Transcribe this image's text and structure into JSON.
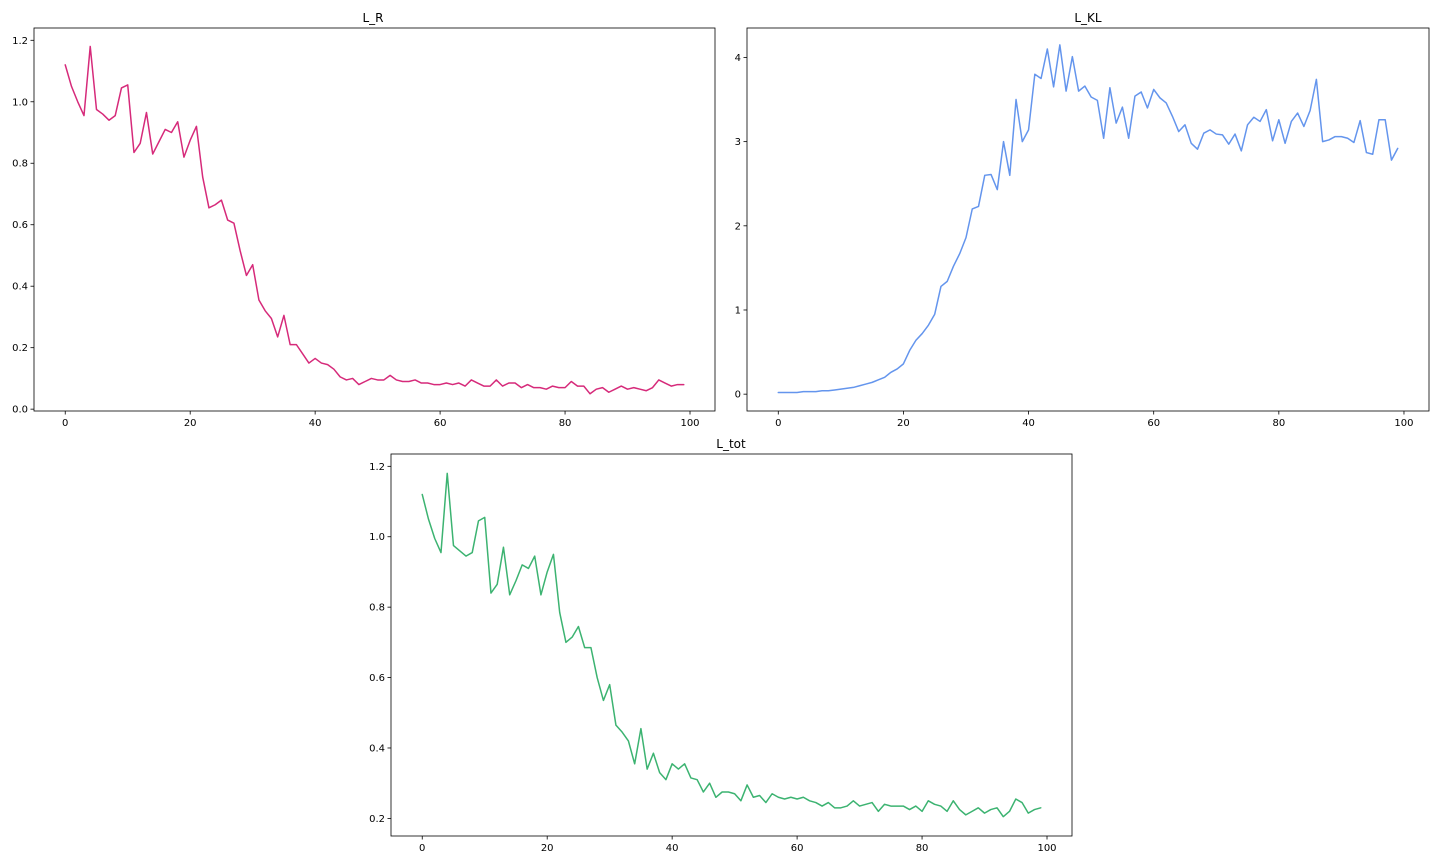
{
  "chart_data": [
    {
      "type": "line",
      "title": "L_R",
      "xlabel": "",
      "ylabel": "",
      "xlim": [
        -5,
        104
      ],
      "ylim": [
        -0.006,
        1.24
      ],
      "xticks": [
        0,
        20,
        40,
        60,
        80,
        100
      ],
      "yticks": [
        0.0,
        0.2,
        0.4,
        0.6,
        0.8,
        1.0,
        1.2
      ],
      "ytick_labels": [
        "0.0",
        "0.2",
        "0.4",
        "0.6",
        "0.8",
        "1.0",
        "1.2"
      ],
      "grid": false,
      "color": "#d62a7a",
      "series": [
        {
          "x": [
            0,
            1,
            2,
            3,
            4,
            5,
            6,
            7,
            8,
            9,
            10,
            11,
            12,
            13,
            14,
            15,
            16,
            17,
            18,
            19,
            20,
            21,
            22,
            23,
            24,
            25,
            26,
            27,
            28,
            29,
            30,
            31,
            32,
            33,
            34,
            35,
            36,
            37,
            38,
            39,
            40,
            41,
            42,
            43,
            44,
            45,
            46,
            47,
            48,
            49,
            50,
            51,
            52,
            53,
            54,
            55,
            56,
            57,
            58,
            59,
            60,
            61,
            62,
            63,
            64,
            65,
            66,
            67,
            68,
            69,
            70,
            71,
            72,
            73,
            74,
            75,
            76,
            77,
            78,
            79,
            80,
            81,
            82,
            83,
            84,
            85,
            86,
            87,
            88,
            89,
            90,
            91,
            92,
            93,
            94,
            95,
            96,
            97,
            98,
            99
          ],
          "values": [
            1.12,
            1.05,
            1.0,
            0.955,
            1.18,
            0.975,
            0.96,
            0.94,
            0.955,
            1.045,
            1.055,
            0.835,
            0.865,
            0.965,
            0.83,
            0.87,
            0.91,
            0.9,
            0.935,
            0.82,
            0.875,
            0.92,
            0.755,
            0.655,
            0.665,
            0.68,
            0.615,
            0.605,
            0.515,
            0.435,
            0.47,
            0.355,
            0.32,
            0.295,
            0.235,
            0.305,
            0.21,
            0.21,
            0.18,
            0.15,
            0.165,
            0.15,
            0.145,
            0.13,
            0.105,
            0.095,
            0.1,
            0.08,
            0.09,
            0.1,
            0.095,
            0.095,
            0.11,
            0.095,
            0.09,
            0.09,
            0.095,
            0.085,
            0.085,
            0.08,
            0.08,
            0.085,
            0.08,
            0.085,
            0.075,
            0.095,
            0.085,
            0.075,
            0.075,
            0.095,
            0.075,
            0.085,
            0.085,
            0.07,
            0.08,
            0.07,
            0.07,
            0.065,
            0.075,
            0.07,
            0.07,
            0.09,
            0.075,
            0.075,
            0.05,
            0.065,
            0.07,
            0.055,
            0.065,
            0.075,
            0.065,
            0.07,
            0.065,
            0.06,
            0.07,
            0.095,
            0.085,
            0.075,
            0.08,
            0.08
          ]
        }
      ]
    },
    {
      "type": "line",
      "title": "L_KL",
      "xlabel": "",
      "ylabel": "",
      "xlim": [
        -5,
        104
      ],
      "ylim": [
        -0.2,
        4.35
      ],
      "xticks": [
        0,
        20,
        40,
        60,
        80,
        100
      ],
      "yticks": [
        0,
        1,
        2,
        3,
        4
      ],
      "ytick_labels": [
        "0",
        "1",
        "2",
        "3",
        "4"
      ],
      "grid": false,
      "color": "#6495ed",
      "series": [
        {
          "x": [
            0,
            1,
            2,
            3,
            4,
            5,
            6,
            7,
            8,
            9,
            10,
            11,
            12,
            13,
            14,
            15,
            16,
            17,
            18,
            19,
            20,
            21,
            22,
            23,
            24,
            25,
            26,
            27,
            28,
            29,
            30,
            31,
            32,
            33,
            34,
            35,
            36,
            37,
            38,
            39,
            40,
            41,
            42,
            43,
            44,
            45,
            46,
            47,
            48,
            49,
            50,
            51,
            52,
            53,
            54,
            55,
            56,
            57,
            58,
            59,
            60,
            61,
            62,
            63,
            64,
            65,
            66,
            67,
            68,
            69,
            70,
            71,
            72,
            73,
            74,
            75,
            76,
            77,
            78,
            79,
            80,
            81,
            82,
            83,
            84,
            85,
            86,
            87,
            88,
            89,
            90,
            91,
            92,
            93,
            94,
            95,
            96,
            97,
            98,
            99
          ],
          "values": [
            0.02,
            0.02,
            0.02,
            0.02,
            0.03,
            0.03,
            0.03,
            0.04,
            0.04,
            0.05,
            0.06,
            0.07,
            0.08,
            0.1,
            0.12,
            0.14,
            0.17,
            0.2,
            0.26,
            0.3,
            0.36,
            0.52,
            0.64,
            0.72,
            0.82,
            0.95,
            1.28,
            1.34,
            1.52,
            1.67,
            1.86,
            2.2,
            2.23,
            2.6,
            2.61,
            2.43,
            3.0,
            2.6,
            3.5,
            3.0,
            3.14,
            3.8,
            3.75,
            4.1,
            3.65,
            4.15,
            3.6,
            4.01,
            3.6,
            3.66,
            3.53,
            3.49,
            3.04,
            3.64,
            3.22,
            3.41,
            3.04,
            3.54,
            3.59,
            3.4,
            3.62,
            3.52,
            3.46,
            3.3,
            3.12,
            3.2,
            2.98,
            2.91,
            3.1,
            3.14,
            3.09,
            3.08,
            2.97,
            3.09,
            2.89,
            3.2,
            3.29,
            3.24,
            3.38,
            3.01,
            3.26,
            2.98,
            3.24,
            3.34,
            3.18,
            3.37,
            3.74,
            3.0,
            3.02,
            3.06,
            3.06,
            3.04,
            2.99,
            3.25,
            2.87,
            2.85,
            3.26,
            3.26,
            2.78,
            2.92
          ]
        }
      ]
    },
    {
      "type": "line",
      "title": "L_tot",
      "xlabel": "",
      "ylabel": "",
      "xlim": [
        -5,
        104
      ],
      "ylim": [
        0.15,
        1.235
      ],
      "xticks": [
        0,
        20,
        40,
        60,
        80,
        100
      ],
      "yticks": [
        0.2,
        0.4,
        0.6,
        0.8,
        1.0,
        1.2
      ],
      "ytick_labels": [
        "0.2",
        "0.4",
        "0.6",
        "0.8",
        "1.0",
        "1.2"
      ],
      "grid": false,
      "color": "#3cb371",
      "series": [
        {
          "x": [
            0,
            1,
            2,
            3,
            4,
            5,
            6,
            7,
            8,
            9,
            10,
            11,
            12,
            13,
            14,
            15,
            16,
            17,
            18,
            19,
            20,
            21,
            22,
            23,
            24,
            25,
            26,
            27,
            28,
            29,
            30,
            31,
            32,
            33,
            34,
            35,
            36,
            37,
            38,
            39,
            40,
            41,
            42,
            43,
            44,
            45,
            46,
            47,
            48,
            49,
            50,
            51,
            52,
            53,
            54,
            55,
            56,
            57,
            58,
            59,
            60,
            61,
            62,
            63,
            64,
            65,
            66,
            67,
            68,
            69,
            70,
            71,
            72,
            73,
            74,
            75,
            76,
            77,
            78,
            79,
            80,
            81,
            82,
            83,
            84,
            85,
            86,
            87,
            88,
            89,
            90,
            91,
            92,
            93,
            94,
            95,
            96,
            97,
            98,
            99
          ],
          "values": [
            1.12,
            1.05,
            0.995,
            0.955,
            1.18,
            0.975,
            0.96,
            0.945,
            0.955,
            1.045,
            1.055,
            0.84,
            0.865,
            0.97,
            0.835,
            0.875,
            0.92,
            0.91,
            0.945,
            0.835,
            0.9,
            0.95,
            0.785,
            0.7,
            0.715,
            0.745,
            0.685,
            0.685,
            0.6,
            0.535,
            0.58,
            0.465,
            0.445,
            0.42,
            0.355,
            0.455,
            0.34,
            0.385,
            0.33,
            0.31,
            0.355,
            0.34,
            0.355,
            0.315,
            0.31,
            0.275,
            0.3,
            0.26,
            0.275,
            0.275,
            0.27,
            0.25,
            0.295,
            0.26,
            0.265,
            0.245,
            0.27,
            0.26,
            0.255,
            0.26,
            0.255,
            0.26,
            0.25,
            0.245,
            0.235,
            0.245,
            0.23,
            0.23,
            0.235,
            0.25,
            0.235,
            0.24,
            0.245,
            0.22,
            0.24,
            0.235,
            0.235,
            0.235,
            0.225,
            0.235,
            0.22,
            0.25,
            0.24,
            0.235,
            0.22,
            0.25,
            0.225,
            0.21,
            0.22,
            0.23,
            0.215,
            0.225,
            0.23,
            0.205,
            0.22,
            0.255,
            0.245,
            0.215,
            0.225,
            0.23
          ]
        }
      ]
    }
  ]
}
